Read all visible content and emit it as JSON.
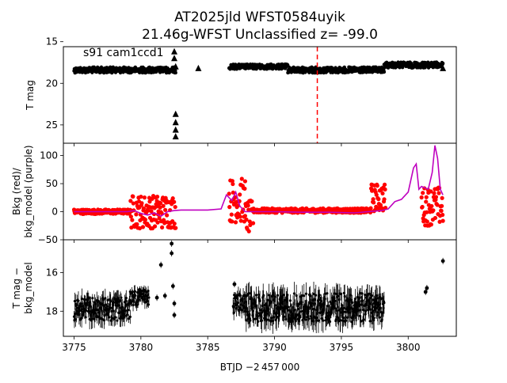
{
  "title_line1": "AT2025jld  WFST0584uyik",
  "title_line2": "21.46g-WFST Unclassified z= -99.0",
  "xlabel": "BTJD −2 457 000",
  "x_ticks": [
    "3775",
    "3780",
    "3785",
    "3790",
    "3795",
    "3800"
  ],
  "colors": {
    "lc": "#000000",
    "bkg": "#ff0000",
    "bkg_model": "#bf00bf",
    "event_line": "#ff0000"
  },
  "chart_data": [
    {
      "type": "scatter",
      "panel": "top",
      "ylabel": "T mag",
      "annotation": "s91 cam1ccd1",
      "y_inverted": true,
      "xlim": [
        3774.2,
        3803.6
      ],
      "ylim": [
        27.2,
        15.6
      ],
      "y_ticks": [
        "15",
        "20",
        "25"
      ],
      "event_x": 3793.2,
      "segments": [
        {
          "x_range": [
            3775.0,
            3782.6
          ],
          "y_center": 18.4,
          "y_spread": 0.35
        },
        {
          "x_range": [
            3786.6,
            3791.0
          ],
          "y_center": 18.0,
          "y_spread": 0.3
        },
        {
          "x_range": [
            3791.0,
            3798.2
          ],
          "y_center": 18.4,
          "y_spread": 0.35
        },
        {
          "x_range": [
            3798.2,
            3802.6
          ],
          "y_center": 17.8,
          "y_spread": 0.35
        }
      ],
      "upper_limits": [
        {
          "x": 3782.5,
          "y": 16.2
        },
        {
          "x": 3782.5,
          "y": 17.0
        },
        {
          "x": 3782.6,
          "y": 18.0
        },
        {
          "x": 3782.6,
          "y": 23.7
        },
        {
          "x": 3782.6,
          "y": 24.7
        },
        {
          "x": 3782.6,
          "y": 25.6
        },
        {
          "x": 3782.6,
          "y": 26.4
        },
        {
          "x": 3784.3,
          "y": 18.2
        },
        {
          "x": 3802.6,
          "y": 18.2
        }
      ]
    },
    {
      "type": "line",
      "panel": "middle",
      "ylabel": "Bkg (red)/\nbkg_model (purple)",
      "xlim": [
        3774.2,
        3803.6
      ],
      "ylim": [
        -50,
        122
      ],
      "y_ticks": [
        "−50",
        "0",
        "50",
        "100"
      ],
      "series": [
        {
          "type": "scatter",
          "segments": [
            {
              "x_range": [
                3775.0,
                3779.2
              ],
              "y_center": 0,
              "y_spread": 4
            },
            {
              "x_range": [
                3779.2,
                3782.6
              ],
              "y_center": 0,
              "y_spread": 30
            },
            {
              "x_range": [
                3786.6,
                3787.8
              ],
              "y_center": 20,
              "y_spread": 40
            },
            {
              "x_range": [
                3787.8,
                3788.4
              ],
              "y_center": -10,
              "y_spread": 30
            },
            {
              "x_range": [
                3788.4,
                3797.2
              ],
              "y_center": 2,
              "y_spread": 4
            },
            {
              "x_range": [
                3797.2,
                3798.3
              ],
              "y_center": 25,
              "y_spread": 25
            },
            {
              "x_range": [
                3801.0,
                3802.6
              ],
              "y_center": 10,
              "y_spread": 35
            }
          ]
        },
        {
          "type": "line",
          "points": [
            [
              3775.0,
              0
            ],
            [
              3776.0,
              0
            ],
            [
              3777.0,
              0
            ],
            [
              3778.0,
              0
            ],
            [
              3779.0,
              0
            ],
            [
              3779.5,
              2
            ],
            [
              3780.0,
              -3
            ],
            [
              3780.5,
              -6
            ],
            [
              3781.0,
              -2
            ],
            [
              3781.5,
              -8
            ],
            [
              3782.0,
              0
            ],
            [
              3782.5,
              2
            ],
            [
              3783.0,
              3
            ],
            [
              3784.0,
              3
            ],
            [
              3785.0,
              3
            ],
            [
              3786.0,
              5
            ],
            [
              3786.4,
              30
            ],
            [
              3786.8,
              20
            ],
            [
              3787.1,
              35
            ],
            [
              3787.4,
              10
            ],
            [
              3787.8,
              0
            ],
            [
              3788.5,
              0
            ],
            [
              3790.0,
              0
            ],
            [
              3792.0,
              -1
            ],
            [
              3794.0,
              -1
            ],
            [
              3796.0,
              -2
            ],
            [
              3797.0,
              0
            ],
            [
              3798.0,
              2
            ],
            [
              3798.5,
              5
            ],
            [
              3799.0,
              18
            ],
            [
              3799.5,
              22
            ],
            [
              3800.0,
              35
            ],
            [
              3800.4,
              78
            ],
            [
              3800.6,
              85
            ],
            [
              3800.8,
              40
            ],
            [
              3801.0,
              45
            ],
            [
              3801.5,
              40
            ],
            [
              3801.8,
              70
            ],
            [
              3802.0,
              118
            ],
            [
              3802.2,
              95
            ],
            [
              3802.4,
              40
            ],
            [
              3802.6,
              30
            ]
          ]
        }
      ]
    },
    {
      "type": "scatter",
      "panel": "bottom",
      "ylabel": "T mag −\nbkg_model",
      "y_inverted": true,
      "xlim": [
        3774.2,
        3803.6
      ],
      "ylim": [
        19.3,
        14.3
      ],
      "y_ticks": [
        "16",
        "18"
      ],
      "segments": [
        {
          "x_range": [
            3775.0,
            3779.2
          ],
          "y_center": 17.9,
          "y_spread": 0.6
        },
        {
          "x_range": [
            3779.2,
            3780.6
          ],
          "y_center": 17.3,
          "y_spread": 0.4
        },
        {
          "x_range": [
            3786.9,
            3787.8
          ],
          "y_center": 17.6,
          "y_spread": 0.5
        },
        {
          "x_range": [
            3787.8,
            3798.2
          ],
          "y_center": 17.8,
          "y_spread": 0.75
        }
      ],
      "extra_points": [
        {
          "x": 3782.3,
          "y": 14.5
        },
        {
          "x": 3782.3,
          "y": 15.0
        },
        {
          "x": 3781.5,
          "y": 15.6
        },
        {
          "x": 3782.4,
          "y": 16.7
        },
        {
          "x": 3782.5,
          "y": 17.6
        },
        {
          "x": 3782.5,
          "y": 18.2
        },
        {
          "x": 3781.2,
          "y": 17.3
        },
        {
          "x": 3781.8,
          "y": 17.2
        },
        {
          "x": 3787.0,
          "y": 16.6
        },
        {
          "x": 3801.4,
          "y": 16.8
        },
        {
          "x": 3801.3,
          "y": 17.0
        },
        {
          "x": 3802.6,
          "y": 15.4
        },
        {
          "x": 3779.9,
          "y": 16.9
        }
      ]
    }
  ]
}
